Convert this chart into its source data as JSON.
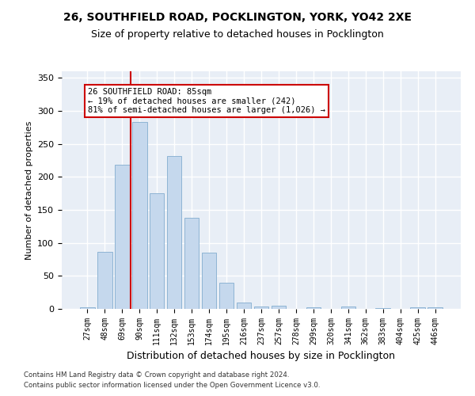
{
  "title": "26, SOUTHFIELD ROAD, POCKLINGTON, YORK, YO42 2XE",
  "subtitle": "Size of property relative to detached houses in Pocklington",
  "xlabel": "Distribution of detached houses by size in Pocklington",
  "ylabel": "Number of detached properties",
  "categories": [
    "27sqm",
    "48sqm",
    "69sqm",
    "90sqm",
    "111sqm",
    "132sqm",
    "153sqm",
    "174sqm",
    "195sqm",
    "216sqm",
    "237sqm",
    "257sqm",
    "278sqm",
    "299sqm",
    "320sqm",
    "341sqm",
    "362sqm",
    "383sqm",
    "404sqm",
    "425sqm",
    "446sqm"
  ],
  "values": [
    3,
    86,
    218,
    283,
    175,
    232,
    138,
    85,
    40,
    10,
    4,
    5,
    0,
    3,
    0,
    4,
    0,
    1,
    0,
    2,
    2
  ],
  "bar_color": "#c5d8ed",
  "bar_edge_color": "#8eb4d4",
  "vline_color": "#cc0000",
  "annotation_text": "26 SOUTHFIELD ROAD: 85sqm\n← 19% of detached houses are smaller (242)\n81% of semi-detached houses are larger (1,026) →",
  "annotation_box_color": "#ffffff",
  "annotation_box_edge": "#cc0000",
  "ylim": [
    0,
    360
  ],
  "yticks": [
    0,
    50,
    100,
    150,
    200,
    250,
    300,
    350
  ],
  "bg_color": "#e8eef6",
  "grid_color": "#ffffff",
  "footer1": "Contains HM Land Registry data © Crown copyright and database right 2024.",
  "footer2": "Contains public sector information licensed under the Open Government Licence v3.0.",
  "title_fontsize": 10,
  "subtitle_fontsize": 9,
  "axis_label_fontsize": 8,
  "tick_fontsize": 7
}
